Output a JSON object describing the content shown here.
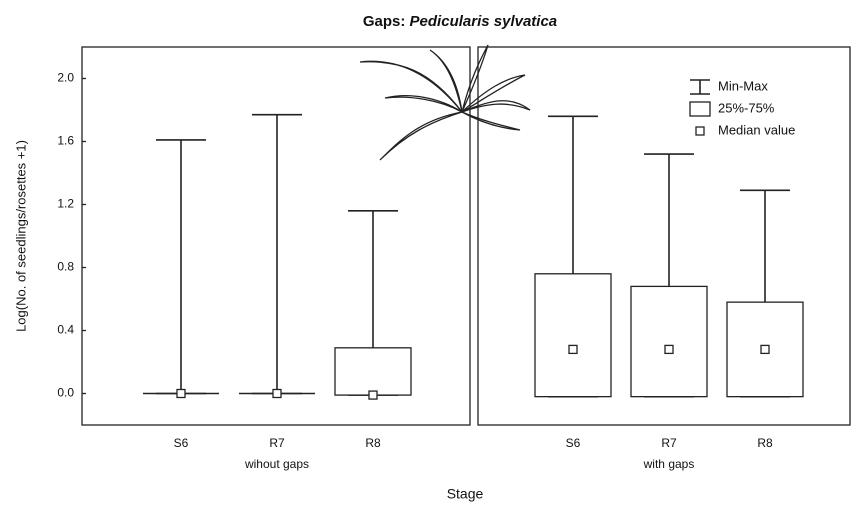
{
  "chart_data": {
    "type": "box",
    "title": "Gaps:",
    "title_species": "Pedicularis sylvatica",
    "y_label": "Log(No. of seedlings/rosettes +1)",
    "x_label": "Stage",
    "ylim": [
      -0.2,
      2.2
    ],
    "yticks": [
      {
        "value": 0,
        "label": "0.0"
      },
      {
        "value": 0.4,
        "label": "0.4"
      },
      {
        "value": 0.8,
        "label": "0.8"
      },
      {
        "value": 1.2,
        "label": "1.2"
      },
      {
        "value": 1.6,
        "label": "1.6"
      },
      {
        "value": 2.0,
        "label": "2.0"
      }
    ],
    "legend": [
      "Min-Max",
      "25%-75%",
      "Median value"
    ],
    "groups": [
      {
        "name": "wihout gaps",
        "categories": [
          "S6",
          "R7",
          "R8"
        ],
        "min": [
          0,
          0,
          -0.01
        ],
        "q1": [
          0,
          0,
          -0.01
        ],
        "median": [
          0,
          0,
          -0.01
        ],
        "q3": [
          0,
          0,
          0.29
        ],
        "max": [
          1.61,
          1.77,
          1.16
        ]
      },
      {
        "name": "with gaps",
        "categories": [
          "S6",
          "R7",
          "R8"
        ],
        "min": [
          -0.02,
          -0.02,
          -0.02
        ],
        "q1": [
          -0.02,
          -0.02,
          -0.02
        ],
        "median": [
          0.28,
          0.28,
          0.28
        ],
        "q3": [
          0.76,
          0.68,
          0.58
        ],
        "max": [
          1.76,
          1.52,
          1.29
        ]
      }
    ]
  }
}
